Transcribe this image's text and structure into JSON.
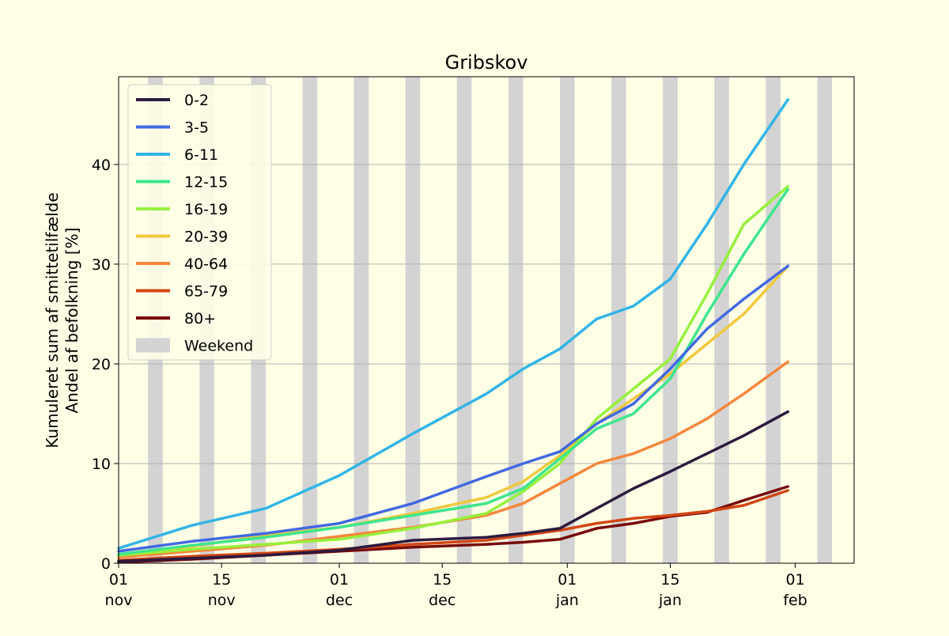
{
  "chart_data": {
    "type": "line",
    "title": "Gribskov",
    "ylabel_line1": "Kumuleret sum af smittetilfælde",
    "ylabel_line2": "Andel af befolkning [%]",
    "xlabel": "",
    "x_unit": "days from 01 nov",
    "xlim": [
      0,
      100
    ],
    "ylim": [
      0,
      48.8
    ],
    "yticks": [
      0,
      10,
      20,
      30,
      40
    ],
    "xticks": [
      {
        "day": 0,
        "label1": "01",
        "label2": "nov"
      },
      {
        "day": 14,
        "label1": "15",
        "label2": "nov"
      },
      {
        "day": 30,
        "label1": "01",
        "label2": "dec"
      },
      {
        "day": 44,
        "label1": "15",
        "label2": "dec"
      },
      {
        "day": 61,
        "label1": "01",
        "label2": "jan"
      },
      {
        "day": 75,
        "label1": "15",
        "label2": "jan"
      },
      {
        "day": 92,
        "label1": "01",
        "label2": "feb"
      }
    ],
    "grid": "horizontal",
    "legend_position": "top-left",
    "weekend_label": "Weekend",
    "weekend_color": "#d3d3d3",
    "weekends_start_day": [
      4,
      11,
      18,
      25,
      32,
      39,
      46,
      53,
      60,
      67,
      74,
      81,
      88,
      95
    ],
    "x": [
      0,
      10,
      20,
      30,
      40,
      50,
      55,
      60,
      65,
      70,
      75,
      80,
      85,
      91
    ],
    "series": [
      {
        "name": "0-2",
        "color": "#2d1b3f",
        "values": [
          0.2,
          0.5,
          0.8,
          1.3,
          2.3,
          2.6,
          3.0,
          3.5,
          5.5,
          7.5,
          9.2,
          11.0,
          12.8,
          15.2
        ]
      },
      {
        "name": "3-5",
        "color": "#4169e1",
        "values": [
          1.2,
          2.2,
          3.0,
          4.0,
          6.0,
          8.7,
          10.0,
          11.2,
          14.0,
          16.0,
          19.5,
          23.5,
          26.5,
          29.8
        ]
      },
      {
        "name": "6-11",
        "color": "#32b4e6",
        "values": [
          1.5,
          3.8,
          5.5,
          8.8,
          13.0,
          17.0,
          19.5,
          21.5,
          24.5,
          25.8,
          28.5,
          34.0,
          40.0,
          46.5
        ]
      },
      {
        "name": "12-15",
        "color": "#3ce68c",
        "values": [
          0.9,
          1.8,
          2.6,
          3.6,
          4.8,
          6.0,
          7.5,
          10.5,
          13.5,
          15.0,
          18.5,
          25.0,
          31.0,
          37.5
        ]
      },
      {
        "name": "16-19",
        "color": "#96f03c",
        "values": [
          0.8,
          1.4,
          1.9,
          2.4,
          3.5,
          5.0,
          7.2,
          10.0,
          14.5,
          17.5,
          20.5,
          27.0,
          34.0,
          37.8
        ]
      },
      {
        "name": "20-39",
        "color": "#f0c83c",
        "values": [
          0.9,
          1.7,
          2.8,
          3.6,
          5.0,
          6.6,
          8.2,
          10.8,
          14.0,
          16.5,
          19.0,
          22.0,
          25.0,
          29.8
        ]
      },
      {
        "name": "40-64",
        "color": "#f5873c",
        "values": [
          0.6,
          1.2,
          1.8,
          2.7,
          3.6,
          4.8,
          6.0,
          8.0,
          10.0,
          11.0,
          12.5,
          14.5,
          17.0,
          20.2
        ]
      },
      {
        "name": "65-79",
        "color": "#d24614",
        "values": [
          0.3,
          0.7,
          1.0,
          1.4,
          1.9,
          2.3,
          2.8,
          3.3,
          4.0,
          4.5,
          4.8,
          5.2,
          5.8,
          7.3
        ]
      },
      {
        "name": "80+",
        "color": "#780a0a",
        "values": [
          0.1,
          0.4,
          0.8,
          1.2,
          1.6,
          1.9,
          2.1,
          2.4,
          3.5,
          4.0,
          4.7,
          5.1,
          6.3,
          7.7
        ]
      }
    ]
  }
}
